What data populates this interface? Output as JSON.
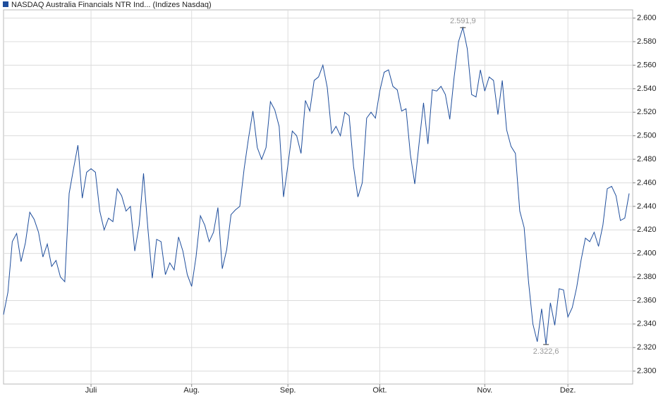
{
  "chart_data": {
    "type": "line",
    "categories": [
      null,
      null,
      null,
      null,
      null,
      null,
      null,
      null,
      null,
      null,
      null,
      null,
      null,
      null,
      null,
      null,
      null,
      null,
      null,
      null,
      "Juli",
      null,
      null,
      null,
      null,
      null,
      null,
      null,
      null,
      null,
      null,
      null,
      null,
      null,
      null,
      null,
      null,
      null,
      null,
      null,
      null,
      null,
      null,
      "Aug.",
      null,
      null,
      null,
      null,
      null,
      null,
      null,
      null,
      null,
      null,
      null,
      null,
      null,
      null,
      null,
      null,
      null,
      null,
      null,
      null,
      null,
      "Sep.",
      null,
      null,
      null,
      null,
      null,
      null,
      null,
      null,
      null,
      null,
      null,
      null,
      null,
      null,
      null,
      null,
      null,
      null,
      null,
      null,
      "Okt.",
      null,
      null,
      null,
      null,
      null,
      null,
      null,
      null,
      null,
      null,
      null,
      null,
      null,
      null,
      null,
      null,
      null,
      null,
      null,
      null,
      null,
      null,
      null,
      "Nov.",
      null,
      null,
      null,
      null,
      null,
      null,
      null,
      null,
      null,
      null,
      null,
      null,
      null,
      null,
      null,
      null,
      null,
      null,
      "Dez.",
      null,
      null,
      null,
      null,
      null,
      null,
      null,
      null,
      null,
      null,
      null,
      null,
      null,
      null
    ],
    "series": [
      {
        "name": "NASDAQ Australia Financials NTR Ind... (Indizes Nasdaq)",
        "color": "#1f4e9c",
        "values": [
          2348,
          2367,
          2410,
          2417,
          2393,
          2409,
          2435,
          2429,
          2418,
          2397,
          2408,
          2389,
          2394,
          2380,
          2376,
          2451,
          2472,
          2492,
          2447,
          2469,
          2472,
          2469,
          2436,
          2420,
          2430,
          2427,
          2455,
          2449,
          2436,
          2440,
          2402,
          2424,
          2468,
          2421,
          2379,
          2412,
          2410,
          2382,
          2392,
          2386,
          2414,
          2402,
          2382,
          2372,
          2397,
          2432,
          2424,
          2410,
          2418,
          2439,
          2387,
          2403,
          2433,
          2437,
          2440,
          2472,
          2498,
          2521,
          2490,
          2480,
          2490,
          2529,
          2522,
          2508,
          2448,
          2475,
          2504,
          2500,
          2485,
          2530,
          2521,
          2547,
          2550,
          2560,
          2541,
          2502,
          2508,
          2500,
          2520,
          2517,
          2474,
          2448,
          2460,
          2515,
          2520,
          2515,
          2538,
          2554,
          2556,
          2542,
          2539,
          2521,
          2523,
          2484,
          2459,
          2494,
          2528,
          2493,
          2539,
          2538,
          2542,
          2535,
          2514,
          2550,
          2580,
          2591.9,
          2574,
          2535,
          2533,
          2556,
          2538,
          2550,
          2547,
          2518,
          2547,
          2505,
          2491,
          2485,
          2436,
          2422,
          2376,
          2340,
          2325,
          2353,
          2322.6,
          2358,
          2339,
          2370,
          2369,
          2346,
          2354,
          2371,
          2394,
          2413,
          2410,
          2418,
          2406,
          2424,
          2455,
          2457,
          2449,
          2428,
          2430,
          2451
        ],
        "value_labels": [
          null,
          null,
          null,
          null,
          null,
          null,
          null,
          null,
          null,
          null,
          null,
          null,
          null,
          null,
          null,
          null,
          null,
          null,
          null,
          null,
          null,
          null,
          null,
          null,
          null,
          null,
          null,
          null,
          null,
          null,
          null,
          null,
          null,
          null,
          null,
          null,
          null,
          null,
          null,
          null,
          null,
          null,
          null,
          null,
          null,
          null,
          null,
          null,
          null,
          null,
          null,
          null,
          null,
          null,
          null,
          null,
          null,
          null,
          null,
          null,
          null,
          null,
          null,
          null,
          null,
          null,
          null,
          null,
          null,
          null,
          null,
          null,
          null,
          null,
          null,
          null,
          null,
          null,
          null,
          null,
          null,
          null,
          null,
          null,
          null,
          null,
          null,
          null,
          null,
          null,
          null,
          null,
          null,
          null,
          null,
          null,
          null,
          null,
          null,
          null,
          null,
          null,
          null,
          null,
          null,
          "2.591,9",
          null,
          null,
          null,
          null,
          null,
          null,
          null,
          null,
          null,
          null,
          null,
          null,
          null,
          null,
          null,
          null,
          null,
          null,
          "2.322,6",
          null,
          null,
          null,
          null,
          null,
          null,
          null,
          null,
          null,
          null,
          null,
          null,
          null,
          null,
          null,
          null,
          null,
          null
        ]
      }
    ],
    "ylim": [
      2289,
      2607
    ],
    "yticks": [
      {
        "value": 2300,
        "label": "2.300"
      },
      {
        "value": 2320,
        "label": "2.320"
      },
      {
        "value": 2340,
        "label": "2.340"
      },
      {
        "value": 2360,
        "label": "2.360"
      },
      {
        "value": 2380,
        "label": "2.380"
      },
      {
        "value": 2400,
        "label": "2.400"
      },
      {
        "value": 2420,
        "label": "2.420"
      },
      {
        "value": 2440,
        "label": "2.440"
      },
      {
        "value": 2460,
        "label": "2.460"
      },
      {
        "value": 2480,
        "label": "2.480"
      },
      {
        "value": 2500,
        "label": "2.500"
      },
      {
        "value": 2520,
        "label": "2.520"
      },
      {
        "value": 2540,
        "label": "2.540"
      },
      {
        "value": 2560,
        "label": "2.560"
      },
      {
        "value": 2580,
        "label": "2.580"
      },
      {
        "value": 2600,
        "label": "2.600"
      }
    ],
    "grid": true
  }
}
